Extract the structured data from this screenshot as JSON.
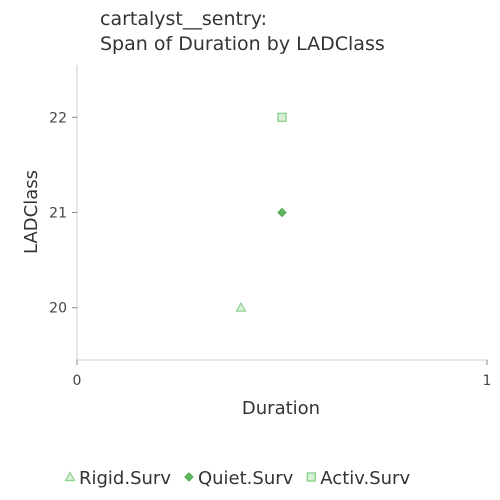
{
  "chart_data": {
    "type": "scatter",
    "title_lines": [
      "cartalyst__sentry:",
      "Span of Duration by LADClass"
    ],
    "xlabel": "Duration",
    "ylabel": "LADClass",
    "xlim": [
      0,
      1
    ],
    "ylim": [
      19.45,
      22.55
    ],
    "x_ticks": [
      0,
      1
    ],
    "y_ticks": [
      20,
      21,
      22
    ],
    "grid": false,
    "legend_position": "bottom",
    "series": [
      {
        "name": "Rigid.Surv",
        "marker": "triangle",
        "color": "#8fd18f",
        "points": [
          {
            "x": 0.4,
            "y": 20
          }
        ]
      },
      {
        "name": "Quiet.Surv",
        "marker": "diamond",
        "color": "#5cb85c",
        "points": [
          {
            "x": 0.5,
            "y": 21
          }
        ]
      },
      {
        "name": "Activ.Surv",
        "marker": "square",
        "color": "#8fd18f",
        "points": [
          {
            "x": 0.5,
            "y": 22
          }
        ]
      }
    ]
  }
}
